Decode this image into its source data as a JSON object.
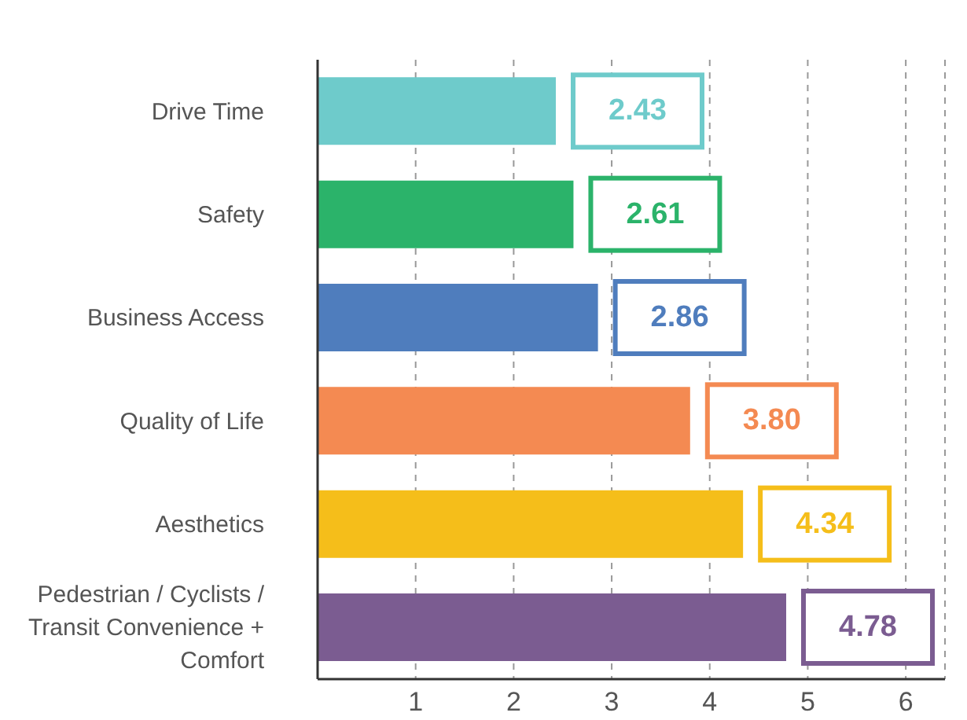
{
  "chart_data": {
    "type": "bar",
    "orientation": "horizontal",
    "categories": [
      "Drive Time",
      "Safety",
      "Business Access",
      "Quality of Life",
      "Aesthetics",
      "Pedestrian / Cyclists / Transit Convenience + Comfort"
    ],
    "values": [
      2.43,
      2.61,
      2.86,
      3.8,
      4.34,
      4.78
    ],
    "colors": [
      "#6ecbcb",
      "#2bb36a",
      "#4f7dbd",
      "#f48a52",
      "#f5be1a",
      "#7b5c91"
    ],
    "value_labels": [
      "2.43",
      "2.61",
      "2.86",
      "3.80",
      "4.34",
      "4.78"
    ],
    "xlim": [
      0,
      6.4
    ],
    "xticks": [
      1,
      2,
      3,
      4,
      5,
      6
    ],
    "grid": "x"
  }
}
